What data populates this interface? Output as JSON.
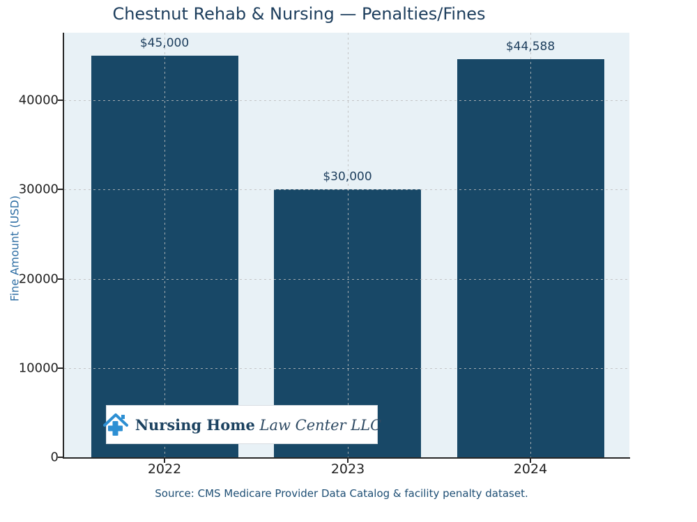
{
  "chart_data": {
    "type": "bar",
    "title": "Chestnut Rehab & Nursing — Penalties/Fines",
    "ylabel": "Fine Amount (USD)",
    "categories": [
      "2022",
      "2023",
      "2024"
    ],
    "values": [
      45000,
      30000,
      44588
    ],
    "bar_labels": [
      "$45,000",
      "$30,000",
      "$44,588"
    ],
    "yticks": [
      0,
      10000,
      20000,
      30000,
      40000
    ],
    "ylim": [
      0,
      47500
    ],
    "grid": "dashed horizontal and vertical gridlines",
    "legend": "none",
    "source_caption": "Source: CMS Medicare Provider Data Catalog & facility penalty dataset.",
    "colors": {
      "bar": "#184867",
      "plot_background": "#e8f1f6",
      "figure_background": "#ffffff",
      "title_text": "#1c3d5c",
      "bar_label_text": "#1c3d5c",
      "axis_label_text": "#2d6da3",
      "tick_text": "#1f1f1f",
      "source_text": "#1d4e74",
      "gridline": "#bdbdbd"
    }
  },
  "watermark": {
    "icon": "house-with-cross-icon",
    "text_bold": "Nursing Home",
    "text_italic": " Law Center LLC",
    "icon_color": "#2d8fd3",
    "text_bold_color": "#1c4260",
    "text_italic_color": "#2e4a63",
    "background": "#ffffff"
  }
}
